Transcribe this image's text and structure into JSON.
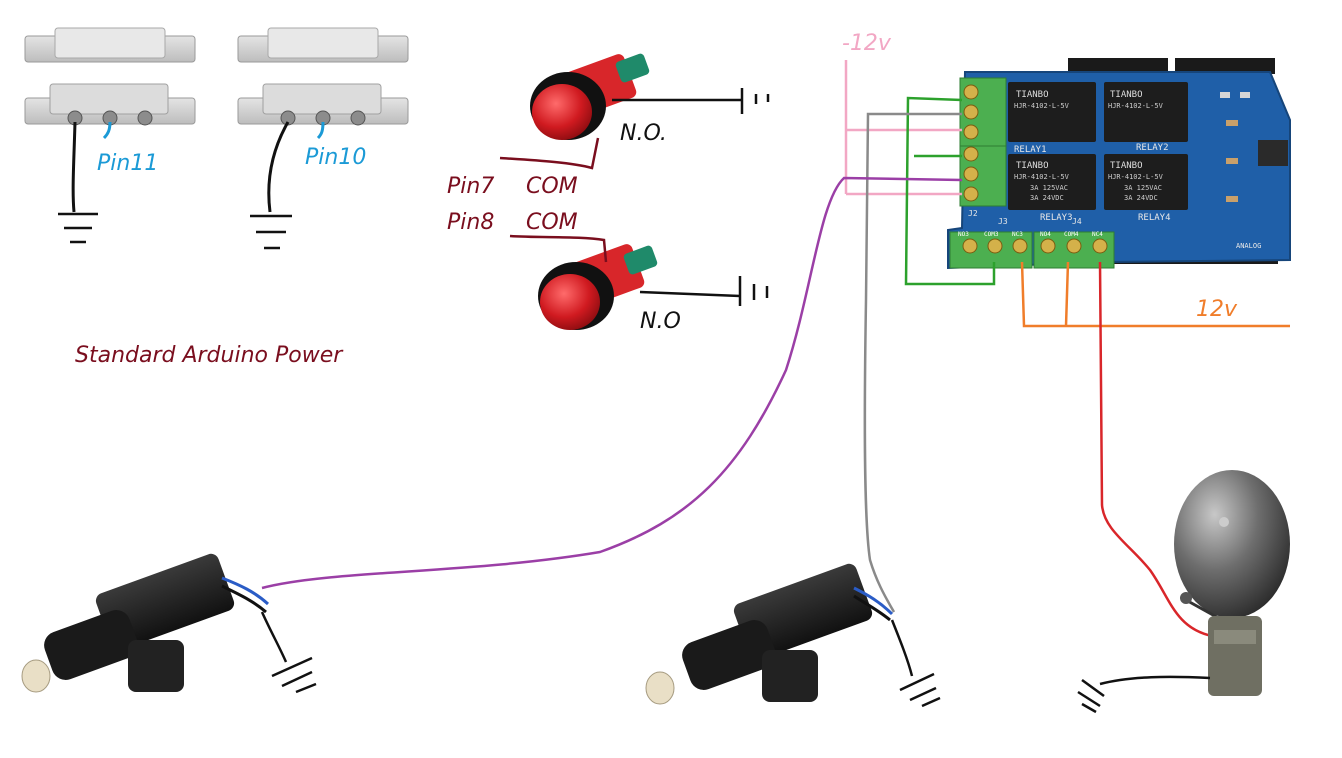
{
  "labels": {
    "pin11": "Pin11",
    "pin10": "Pin10",
    "no_top": "N.O.",
    "no_bottom": "N.O",
    "pin7": "Pin7",
    "pin8": "Pin8",
    "com_top": "COM",
    "com_bottom": "COM",
    "arduino_power": "Standard Arduino Power",
    "minus12v": "-12v",
    "plus12v": "12v"
  },
  "relay_board": {
    "relay_brand": "TIANBO",
    "relay_model": "HJR-4102-L-5V",
    "relay_spec_ac": "3A 125VAC",
    "relay_spec_dc": "3A 24VDC",
    "relay_names": [
      "RELAY1",
      "RELAY2",
      "RELAY3",
      "RELAY4"
    ],
    "connector_names": [
      "J2",
      "J3",
      "J4"
    ],
    "bottom_terminals": [
      "NO3",
      "COM3",
      "NC3",
      "NO4",
      "COM4",
      "NC4"
    ],
    "analog_label": "ANALOG"
  },
  "colors": {
    "sensor_label": "#1b9ad6",
    "arduino_label": "#7a0e1e",
    "minus12v": "#f2a7c4",
    "plus12v": "#f07d2a",
    "wire_purple": "#9b3fa6",
    "wire_gray": "#8a8a8a",
    "wire_red": "#d9262a",
    "wire_green": "#2ca12c",
    "board_blue": "#1f5fa8"
  }
}
